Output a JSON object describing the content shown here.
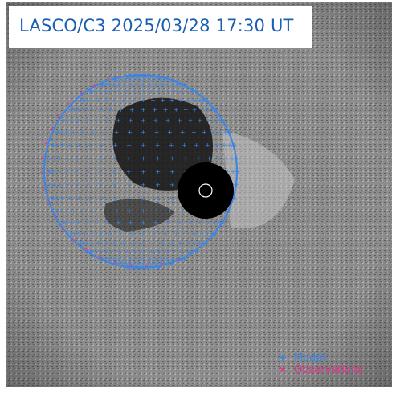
{
  "title": "LASCO/C3 2025/03/28 17:30 UT",
  "legend": {
    "model_marker": "+",
    "model_label": "Model",
    "observations_marker": "×",
    "observations_label": "Observations"
  },
  "colors": {
    "title_text": "#1a5fb4",
    "model": "#3a86e8",
    "observations": "#e8308c",
    "occulter": "#000000",
    "background": "#8a8a8a"
  }
}
